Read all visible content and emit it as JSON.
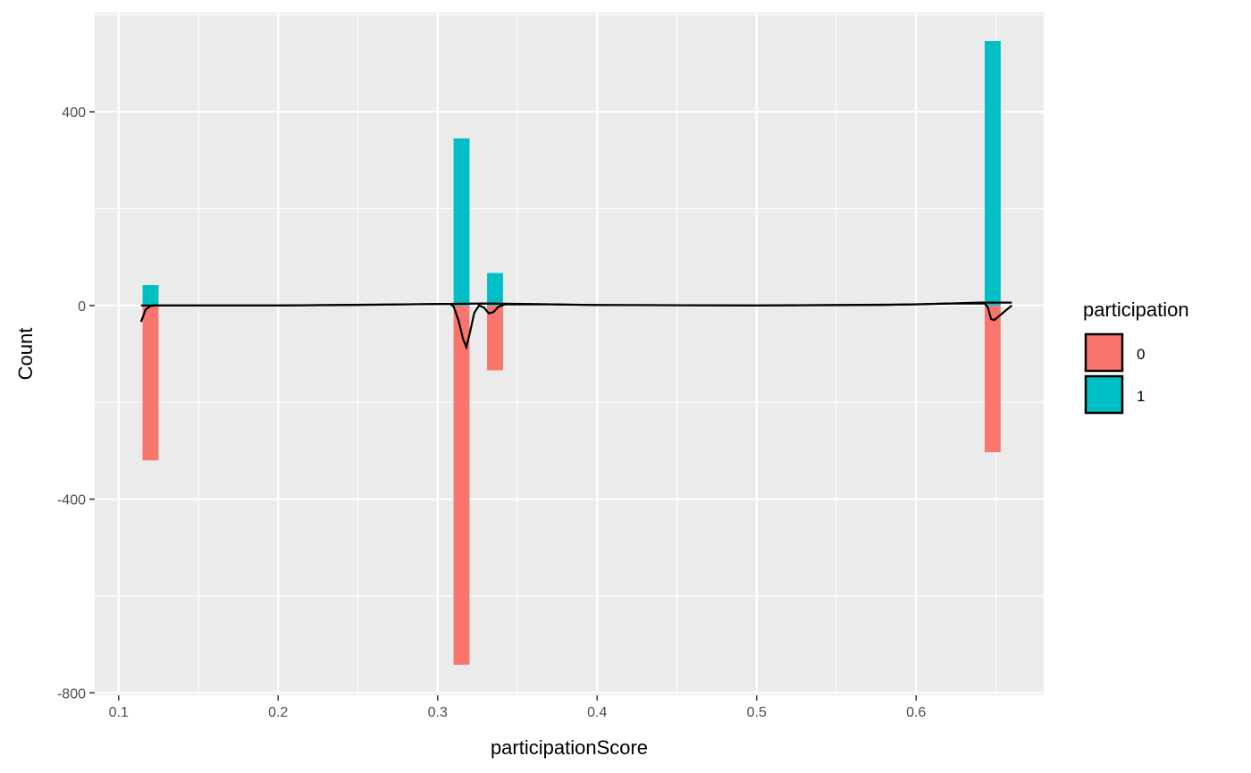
{
  "chart_data": {
    "type": "bar",
    "xlabel": "participationScore",
    "ylabel": "Count",
    "xlim": [
      0.085,
      0.68
    ],
    "ylim": [
      -805,
      605
    ],
    "x_ticks": [
      0.1,
      0.2,
      0.3,
      0.4,
      0.5,
      0.6
    ],
    "x_tick_labels": [
      "0.1",
      "0.2",
      "0.3",
      "0.4",
      "0.5",
      "0.6"
    ],
    "y_ticks": [
      -800,
      -400,
      0,
      400
    ],
    "y_tick_labels": [
      "-800",
      "-400",
      "0",
      "400"
    ],
    "grid": true,
    "bin_width": 0.01,
    "series": [
      {
        "name": "0",
        "color": "#F8766D",
        "x": [
          0.12,
          0.315,
          0.336,
          0.648
        ],
        "values": [
          -320,
          -742,
          -134,
          -303
        ]
      },
      {
        "name": "1",
        "color": "#00BFC4",
        "x": [
          0.12,
          0.315,
          0.336,
          0.648
        ],
        "values": [
          42,
          345,
          67,
          546
        ]
      }
    ],
    "density_line": {
      "color": "#000000",
      "points": [
        [
          0.114,
          -34
        ],
        [
          0.117,
          -8
        ],
        [
          0.12,
          -1
        ],
        [
          0.123,
          0
        ],
        [
          0.2,
          0
        ],
        [
          0.25,
          1
        ],
        [
          0.3,
          3
        ],
        [
          0.308,
          3
        ],
        [
          0.31,
          -2
        ],
        [
          0.313,
          -30
        ],
        [
          0.316,
          -70
        ],
        [
          0.318,
          -86
        ],
        [
          0.32,
          -60
        ],
        [
          0.323,
          -15
        ],
        [
          0.326,
          0
        ],
        [
          0.329,
          -4
        ],
        [
          0.332,
          -16
        ],
        [
          0.335,
          -14
        ],
        [
          0.338,
          -3
        ],
        [
          0.342,
          2
        ],
        [
          0.37,
          2
        ],
        [
          0.4,
          1
        ],
        [
          0.5,
          0
        ],
        [
          0.58,
          1
        ],
        [
          0.62,
          4
        ],
        [
          0.643,
          4
        ],
        [
          0.645,
          -4
        ],
        [
          0.647,
          -28
        ],
        [
          0.649,
          -30
        ],
        [
          0.66,
          0
        ]
      ],
      "upper_points": [
        [
          0.114,
          0
        ],
        [
          0.2,
          0
        ],
        [
          0.3,
          3
        ],
        [
          0.33,
          4
        ],
        [
          0.36,
          3
        ],
        [
          0.4,
          1
        ],
        [
          0.5,
          0
        ],
        [
          0.6,
          2
        ],
        [
          0.64,
          6
        ],
        [
          0.66,
          6
        ]
      ]
    },
    "legend": {
      "title": "participation",
      "position": "right",
      "entries": [
        "0",
        "1"
      ]
    }
  }
}
